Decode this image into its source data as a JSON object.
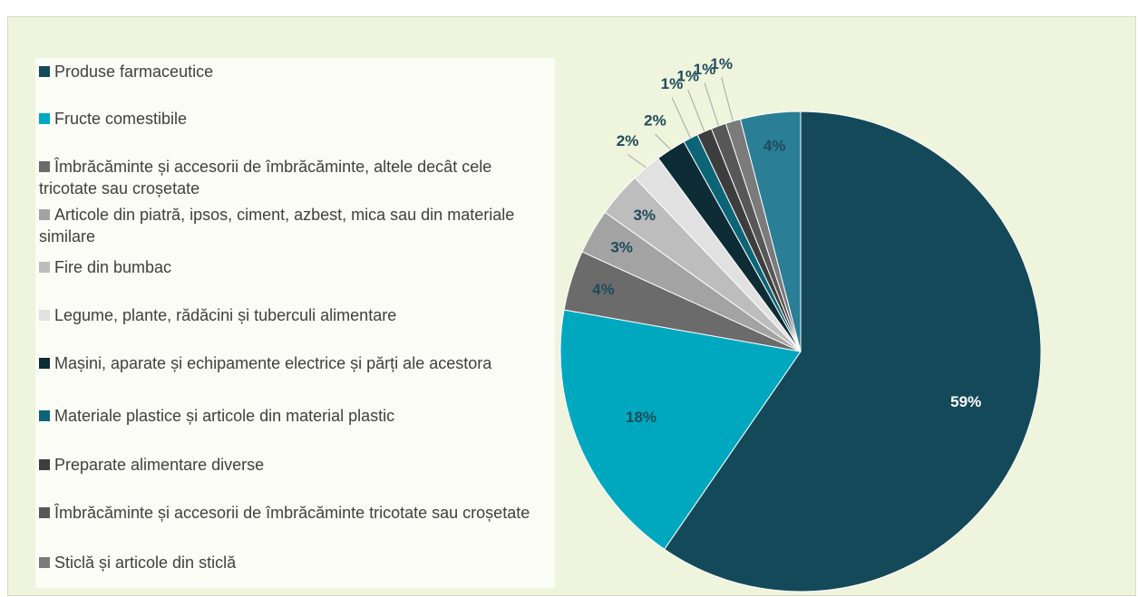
{
  "chart_data": {
    "type": "pie",
    "categories": [
      "Produse farmaceutice",
      "Fructe comestibile",
      "Îmbrăcăminte și accesorii de îmbrăcăminte, altele decât cele tricotate sau croșetate",
      "Articole din piatră, ipsos, ciment, azbest, mica sau din materiale similare",
      "Fire din bumbac",
      "Legume, plante, rădăcini și tuberculi alimentare",
      "Mașini, aparate și echipamente electrice și părți ale acestora",
      "Materiale plastice și articole din material plastic",
      "Preparate alimentare diverse",
      "Îmbrăcăminte și accesorii de îmbrăcăminte tricotate sau croșetate",
      "Sticlă și articole din sticlă",
      null
    ],
    "values": [
      59,
      18,
      4,
      3,
      3,
      2,
      2,
      1,
      1,
      1,
      1,
      4
    ],
    "value_labels": [
      "59%",
      "18%",
      "4%",
      "3%",
      "3%",
      "2%",
      "2%",
      "1%",
      "1%",
      "1%",
      "1%",
      "4%"
    ],
    "colors": [
      "#14495a",
      "#00a8bf",
      "#6b6b6b",
      "#a3a3a3",
      "#bdbdbd",
      "#e1e1e1",
      "#0e2c35",
      "#0b6577",
      "#3d3d3d",
      "#575757",
      "#7b7b7b",
      "#2a7e96"
    ]
  }
}
